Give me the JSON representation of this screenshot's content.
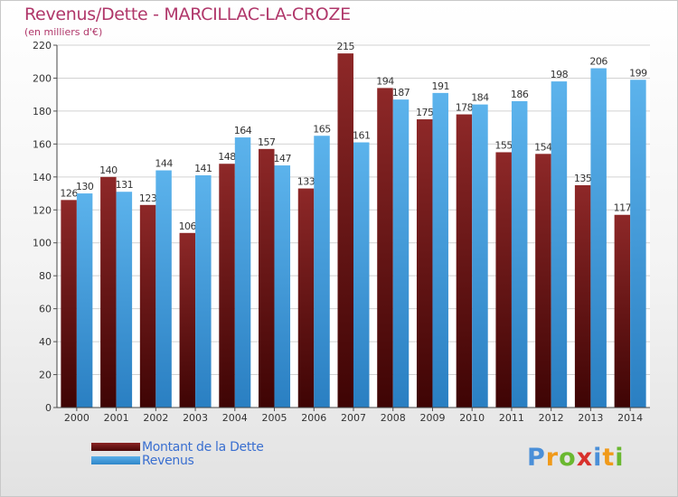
{
  "chart_data": {
    "type": "bar",
    "title": "Revenus/Dette - MARCILLAC-LA-CROZE",
    "subtitle": "(en milliers d'€)",
    "categories": [
      "2000",
      "2001",
      "2002",
      "2003",
      "2004",
      "2005",
      "2006",
      "2007",
      "2008",
      "2009",
      "2010",
      "2011",
      "2012",
      "2013",
      "2014"
    ],
    "series": [
      {
        "name": "Montant de la Dette",
        "color": "#6e1414",
        "values": [
          126,
          140,
          123,
          106,
          148,
          157,
          133,
          215,
          194,
          175,
          178,
          155,
          154,
          135,
          117
        ]
      },
      {
        "name": "Revenus",
        "color": "#4aa3e4",
        "values": [
          130,
          131,
          144,
          141,
          164,
          147,
          165,
          161,
          187,
          191,
          184,
          186,
          198,
          206,
          199
        ]
      }
    ],
    "ylim": [
      0,
      220
    ],
    "yticks": [
      0,
      20,
      40,
      60,
      80,
      100,
      120,
      140,
      160,
      180,
      200,
      220
    ],
    "grid": true,
    "legend": "bottom-left"
  },
  "branding": {
    "logo_letters": [
      "P",
      "r",
      "o",
      "x",
      "i",
      "t",
      "i"
    ]
  }
}
